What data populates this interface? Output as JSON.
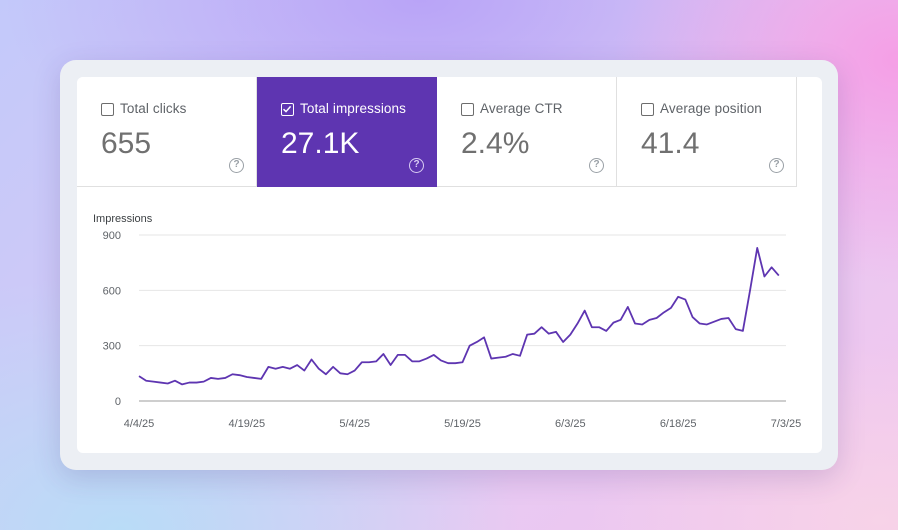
{
  "metrics": [
    {
      "label": "Total clicks",
      "value": "655",
      "selected": false,
      "help": "?"
    },
    {
      "label": "Total impressions",
      "value": "27.1K",
      "selected": true,
      "help": "?"
    },
    {
      "label": "Average CTR",
      "value": "2.4%",
      "selected": false,
      "help": "?"
    },
    {
      "label": "Average position",
      "value": "41.4",
      "selected": false,
      "help": "?"
    }
  ],
  "colors": {
    "accent": "#5e35b1",
    "line": "#5e35b1",
    "grid": "#e6e6e6"
  },
  "chart_data": {
    "type": "line",
    "ylabel": "Impressions",
    "yticks": [
      0,
      300,
      600,
      900
    ],
    "ylim": [
      0,
      900
    ],
    "xticks": [
      "4/4/25",
      "4/19/25",
      "5/4/25",
      "5/19/25",
      "6/3/25",
      "6/18/25",
      "7/3/25"
    ],
    "x_start": "2025-04-04",
    "x_end": "2025-07-03",
    "grid": true,
    "series": [
      {
        "name": "",
        "values": [
          135,
          110,
          105,
          100,
          95,
          110,
          90,
          100,
          100,
          105,
          125,
          120,
          125,
          145,
          140,
          130,
          125,
          120,
          185,
          175,
          185,
          175,
          195,
          165,
          225,
          175,
          145,
          185,
          150,
          145,
          165,
          210,
          210,
          215,
          255,
          195,
          250,
          250,
          215,
          215,
          230,
          250,
          220,
          205,
          205,
          210,
          300,
          320,
          345,
          230,
          235,
          240,
          255,
          245,
          360,
          365,
          400,
          365,
          375,
          320,
          360,
          420,
          490,
          400,
          400,
          380,
          425,
          440,
          510,
          420,
          415,
          440,
          450,
          480,
          505,
          565,
          550,
          455,
          420,
          415,
          430,
          445,
          450,
          390,
          380,
          600,
          830,
          675,
          725,
          680
        ]
      }
    ]
  }
}
